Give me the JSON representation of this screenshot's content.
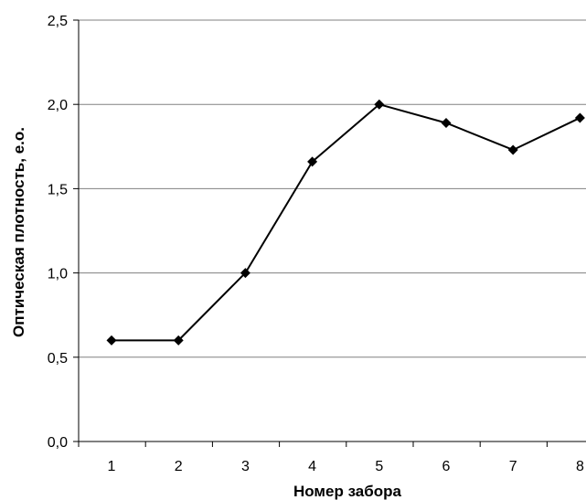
{
  "chart_data": {
    "type": "line",
    "title": "",
    "xlabel": "Номер забора",
    "ylabel": "Оптическая плотность, е.о.",
    "x": [
      1,
      2,
      3,
      4,
      5,
      6,
      7,
      8
    ],
    "x_tick_labels": [
      "1",
      "2",
      "3",
      "4",
      "5",
      "6",
      "7",
      "8"
    ],
    "y_ticks": [
      0.0,
      0.5,
      1.0,
      1.5,
      2.0,
      2.5
    ],
    "y_tick_labels": [
      "0,0",
      "0,5",
      "1,0",
      "1,5",
      "2,0",
      "2,5"
    ],
    "ylim": [
      0,
      2.5
    ],
    "grid": "horizontal",
    "legend": "none",
    "series": [
      {
        "values": [
          0.6,
          0.6,
          1.0,
          1.66,
          2.0,
          1.89,
          1.73,
          1.92
        ],
        "color": "#000000",
        "marker": "diamond"
      }
    ]
  }
}
